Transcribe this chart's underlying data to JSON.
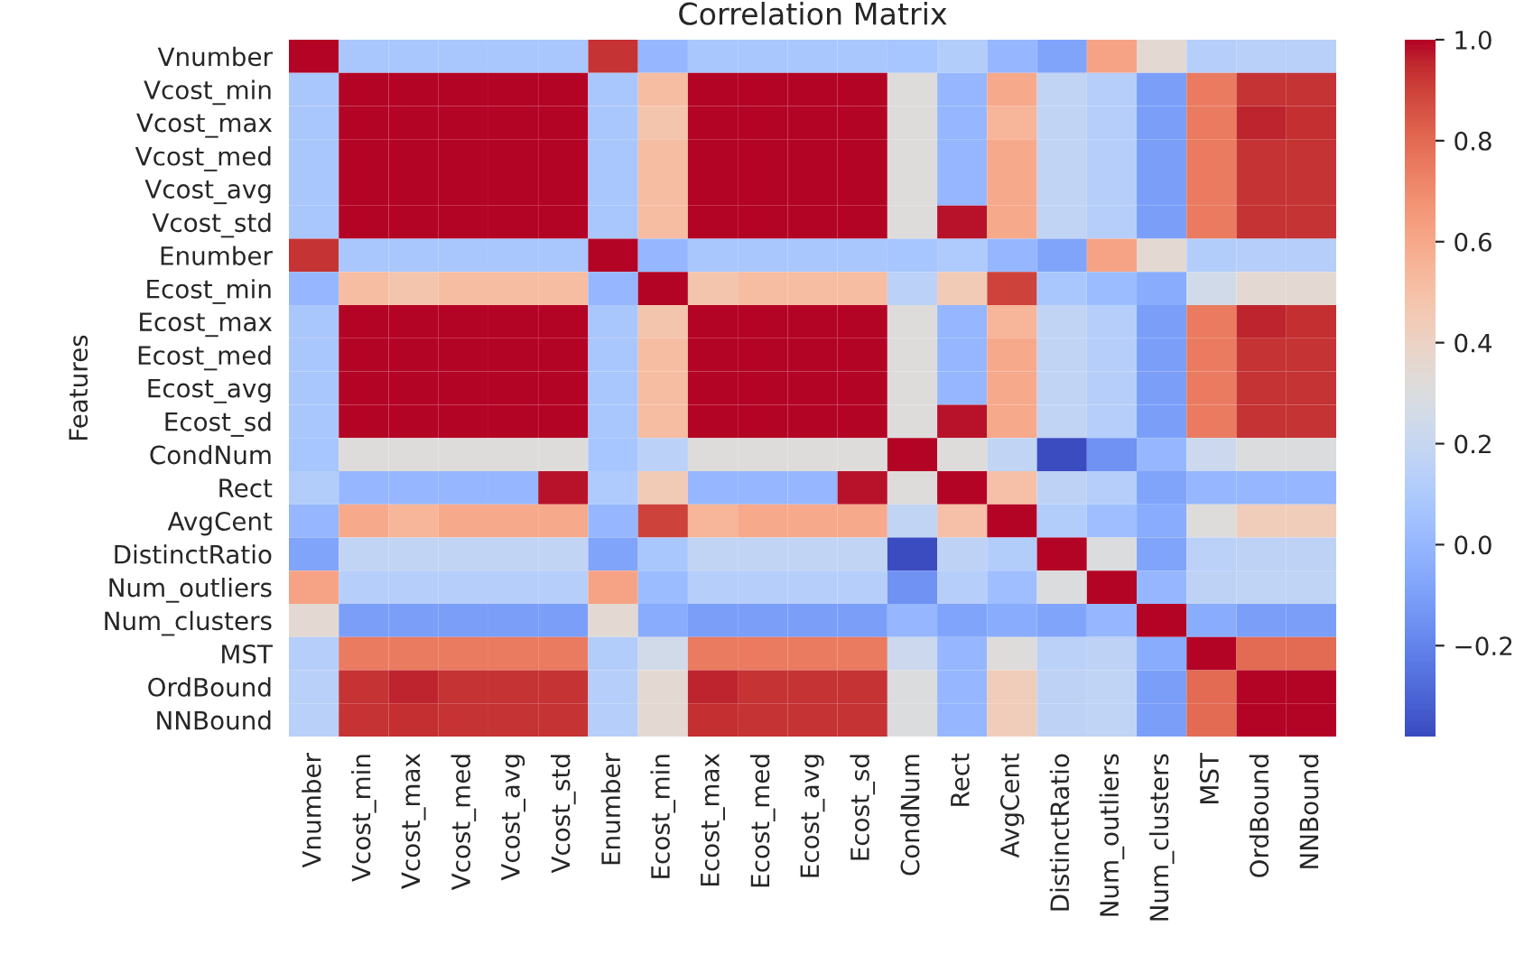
{
  "chart_data": {
    "type": "heatmap",
    "title": "Correlation Matrix",
    "ylabel": "Features",
    "categories": [
      "Vnumber",
      "Vcost_min",
      "Vcost_max",
      "Vcost_med",
      "Vcost_avg",
      "Vcost_std",
      "Enumber",
      "Ecost_min",
      "Ecost_max",
      "Ecost_med",
      "Ecost_avg",
      "Ecost_sd",
      "CondNum",
      "Rect",
      "AvgCent",
      "DistinctRatio",
      "Num_outliers",
      "Num_clusters",
      "MST",
      "OrdBound",
      "NNBound"
    ],
    "y_categories": [
      "Vnumber",
      "Vcost_min",
      "Vcost_max",
      "Vcost_med",
      "Vcost_avg",
      "Vcost_std",
      "Enumber",
      "Ecost_min",
      "Ecost_max",
      "Ecost_med",
      "Ecost_avg",
      "Ecost_sd",
      "CondNum",
      "Rect",
      "AvgCent",
      "DistinctRatio",
      "Num_outliers",
      "Num_clusters",
      "MST",
      "OrdBound",
      "NNBound"
    ],
    "cells": [
      [
        1,
        0.08,
        0.08,
        0.08,
        0.08,
        0.08,
        0.93,
        0.0,
        0.08,
        0.08,
        0.08,
        0.08,
        0.07,
        0.12,
        0.0,
        -0.08,
        0.62,
        0.35,
        0.13,
        0.14,
        0.14
      ],
      [
        0.08,
        1,
        1,
        1,
        1,
        1,
        0.08,
        0.52,
        1,
        1,
        1,
        1,
        0.32,
        0.0,
        0.6,
        0.18,
        0.13,
        -0.1,
        0.75,
        0.93,
        0.93
      ],
      [
        0.08,
        1,
        1,
        1,
        1,
        1,
        0.08,
        0.48,
        1,
        1,
        1,
        1,
        0.32,
        0.0,
        0.55,
        0.18,
        0.13,
        -0.1,
        0.75,
        0.96,
        0.94
      ],
      [
        0.08,
        1,
        1,
        1,
        1,
        1,
        0.08,
        0.52,
        1,
        1,
        1,
        1,
        0.32,
        0.0,
        0.6,
        0.18,
        0.13,
        -0.1,
        0.75,
        0.93,
        0.93
      ],
      [
        0.08,
        1,
        1,
        1,
        1,
        1,
        0.08,
        0.52,
        1,
        1,
        1,
        1,
        0.32,
        0.0,
        0.6,
        0.18,
        0.13,
        -0.1,
        0.75,
        0.93,
        0.93
      ],
      [
        0.08,
        1,
        1,
        1,
        1,
        1,
        0.08,
        0.52,
        1,
        1,
        1,
        1,
        0.32,
        0.98,
        0.6,
        0.18,
        0.13,
        -0.1,
        0.75,
        0.93,
        0.93
      ],
      [
        0.93,
        0.08,
        0.08,
        0.08,
        0.08,
        0.08,
        1,
        0.0,
        0.08,
        0.08,
        0.08,
        0.08,
        0.07,
        0.1,
        0.0,
        -0.08,
        0.62,
        0.35,
        0.12,
        0.13,
        0.13
      ],
      [
        0.0,
        0.52,
        0.48,
        0.52,
        0.52,
        0.52,
        0.0,
        1,
        0.48,
        0.52,
        0.52,
        0.52,
        0.15,
        0.45,
        0.9,
        0.08,
        0.02,
        -0.05,
        0.25,
        0.35,
        0.35
      ],
      [
        0.08,
        1,
        1,
        1,
        1,
        1,
        0.08,
        0.48,
        1,
        1,
        1,
        1,
        0.32,
        0.0,
        0.55,
        0.18,
        0.13,
        -0.1,
        0.75,
        0.96,
        0.94
      ],
      [
        0.08,
        1,
        1,
        1,
        1,
        1,
        0.08,
        0.52,
        1,
        1,
        1,
        1,
        0.32,
        0.0,
        0.6,
        0.18,
        0.13,
        -0.1,
        0.75,
        0.93,
        0.93
      ],
      [
        0.08,
        1,
        1,
        1,
        1,
        1,
        0.08,
        0.52,
        1,
        1,
        1,
        1,
        0.32,
        0.0,
        0.6,
        0.18,
        0.13,
        -0.1,
        0.75,
        0.93,
        0.93
      ],
      [
        0.08,
        1,
        1,
        1,
        1,
        1,
        0.08,
        0.52,
        1,
        1,
        1,
        1,
        0.32,
        0.98,
        0.6,
        0.18,
        0.13,
        -0.1,
        0.75,
        0.93,
        0.93
      ],
      [
        0.07,
        0.32,
        0.32,
        0.32,
        0.32,
        0.32,
        0.07,
        0.15,
        0.32,
        0.32,
        0.32,
        0.32,
        1,
        0.32,
        0.18,
        -0.38,
        -0.15,
        0.0,
        0.22,
        0.3,
        0.3
      ],
      [
        0.12,
        0.0,
        0.0,
        0.0,
        0.0,
        0.98,
        0.1,
        0.45,
        0.0,
        0.0,
        0.0,
        0.98,
        0.32,
        1,
        0.5,
        0.16,
        0.13,
        -0.08,
        0.0,
        0.0,
        0.0
      ],
      [
        0.0,
        0.6,
        0.55,
        0.6,
        0.6,
        0.6,
        0.0,
        0.9,
        0.55,
        0.6,
        0.6,
        0.6,
        0.18,
        0.5,
        1,
        0.12,
        0.03,
        -0.05,
        0.32,
        0.43,
        0.43
      ],
      [
        -0.08,
        0.18,
        0.18,
        0.18,
        0.18,
        0.18,
        -0.08,
        0.08,
        0.18,
        0.18,
        0.18,
        0.18,
        -0.38,
        0.16,
        0.12,
        1,
        0.3,
        -0.08,
        0.15,
        0.16,
        0.16
      ],
      [
        0.62,
        0.13,
        0.13,
        0.13,
        0.13,
        0.13,
        0.62,
        0.02,
        0.13,
        0.13,
        0.13,
        0.13,
        -0.15,
        0.13,
        0.03,
        0.3,
        1,
        0.0,
        0.16,
        0.17,
        0.17
      ],
      [
        0.35,
        -0.1,
        -0.1,
        -0.1,
        -0.1,
        -0.1,
        0.35,
        -0.05,
        -0.1,
        -0.1,
        -0.1,
        -0.1,
        0.0,
        -0.08,
        -0.05,
        -0.08,
        0.0,
        1,
        -0.05,
        -0.1,
        -0.1
      ],
      [
        0.13,
        0.75,
        0.75,
        0.75,
        0.75,
        0.75,
        0.12,
        0.25,
        0.75,
        0.75,
        0.75,
        0.75,
        0.22,
        0.0,
        0.32,
        0.15,
        0.16,
        -0.05,
        1,
        0.8,
        0.8
      ],
      [
        0.14,
        0.93,
        0.96,
        0.93,
        0.93,
        0.93,
        0.13,
        0.35,
        0.96,
        0.93,
        0.93,
        0.93,
        0.3,
        0.0,
        0.43,
        0.16,
        0.17,
        -0.1,
        0.8,
        1,
        1
      ],
      [
        0.14,
        0.93,
        0.94,
        0.93,
        0.93,
        0.93,
        0.13,
        0.35,
        0.94,
        0.93,
        0.93,
        0.93,
        0.3,
        0.0,
        0.43,
        0.16,
        0.17,
        -0.1,
        0.8,
        1,
        1
      ]
    ],
    "clim": [
      -0.38,
      1.0
    ],
    "cticks": [
      {
        "value": -0.2,
        "label": "−0.2"
      },
      {
        "value": 0.0,
        "label": "0.0"
      },
      {
        "value": 0.2,
        "label": "0.2"
      },
      {
        "value": 0.4,
        "label": "0.4"
      },
      {
        "value": 0.6,
        "label": "0.6"
      },
      {
        "value": 0.8,
        "label": "0.8"
      },
      {
        "value": 1.0,
        "label": "1.0"
      }
    ]
  }
}
